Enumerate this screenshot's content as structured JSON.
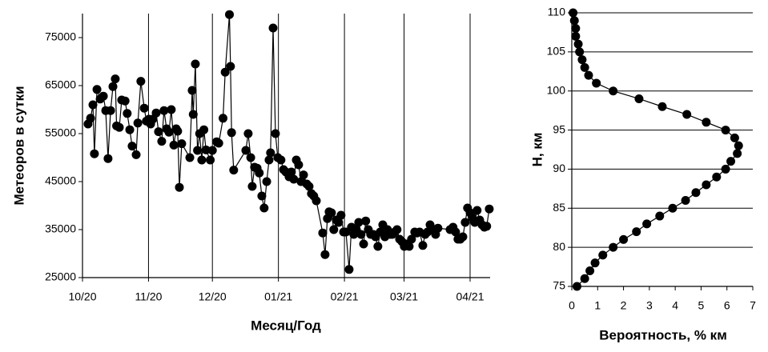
{
  "chart_data": [
    {
      "type": "line",
      "y_label": "Метеоров в сутки",
      "x_label": "Месяц/Год",
      "x": [
        2.6,
        3.8,
        4.9,
        5.6,
        6.8,
        8.3,
        9.8,
        10.9,
        12,
        13.2,
        14.3,
        15.4,
        16,
        17.3,
        18.4,
        20,
        21,
        22.2,
        23.3,
        25.2,
        26,
        27.4,
        29,
        30,
        31.2,
        32,
        33,
        34.6,
        35.7,
        37.2,
        38.3,
        39.5,
        40.6,
        41.7,
        42.9,
        44,
        44.7,
        45.5,
        46.6,
        50.4,
        51.5,
        52,
        53,
        54,
        55,
        56,
        57,
        58,
        60,
        61,
        63,
        64,
        66,
        67,
        69,
        69.5,
        70,
        71,
        76.7,
        77.8,
        79,
        79.7,
        80.8,
        82,
        83,
        84.2,
        85.3,
        86.5,
        87.6,
        88.3,
        89.5,
        90.6,
        91.7,
        93.2,
        94.4,
        95.5,
        97,
        98.1,
        99.2,
        100.4,
        101.5,
        102.6,
        103.8,
        105.3,
        106.4,
        107.5,
        108.6,
        109.8,
        112.8,
        113.9,
        115,
        115.8,
        116.9,
        118,
        119.2,
        120.3,
        121.4,
        122.6,
        123.7,
        125.2,
        126.3,
        127.4,
        128.6,
        129.7,
        130.8,
        132,
        133,
        134.2,
        135.3,
        136.5,
        137.6,
        138.7,
        139.8,
        141,
        142,
        143.2,
        144.4,
        145.5,
        146.6,
        147.7,
        148.9,
        150,
        151.1,
        152.3,
        153.4,
        154.5,
        156,
        157.1,
        158.3,
        159.8,
        160.9,
        162,
        163.2,
        164.3,
        165.8,
        166.9,
        172.6,
        174,
        175.2,
        176.3,
        177.4,
        178.6,
        179.7,
        180.8,
        182,
        183,
        184.2,
        185.3,
        186.5,
        187.6,
        188.7,
        189.8,
        191
      ],
      "series": [
        {
          "color": "#000000",
          "values": [
            57000,
            58200,
            61000,
            50800,
            64200,
            62200,
            62800,
            59800,
            49800,
            59800,
            64800,
            66400,
            56600,
            56300,
            62000,
            61800,
            59200,
            55800,
            52400,
            50600,
            57200,
            65900,
            60300,
            57600,
            58000,
            57000,
            58000,
            59300,
            55400,
            53400,
            59800,
            56000,
            55300,
            60000,
            52600,
            56000,
            55500,
            43800,
            52900,
            50000,
            64000,
            59000,
            69500,
            51500,
            55000,
            49500,
            55800,
            51600,
            49500,
            51500,
            53300,
            53000,
            58200,
            67800,
            79800,
            69000,
            55200,
            47400,
            51500,
            55000,
            50000,
            44000,
            48000,
            47800,
            46800,
            42000,
            39500,
            45000,
            49500,
            51000,
            77000,
            55000,
            50000,
            49500,
            47500,
            47000,
            46000,
            47000,
            45500,
            49500,
            48500,
            45000,
            46400,
            44500,
            44000,
            42500,
            42000,
            41000,
            34300,
            29800,
            37300,
            38700,
            38500,
            35000,
            37000,
            36500,
            38000,
            34500,
            34500,
            26700,
            35500,
            34000,
            35000,
            36500,
            34000,
            32000,
            36800,
            35000,
            34000,
            34000,
            33500,
            31500,
            34500,
            36000,
            33500,
            35000,
            34000,
            34000,
            34500,
            35000,
            33000,
            32500,
            31500,
            32000,
            31500,
            33000,
            34500,
            34300,
            34500,
            31700,
            34000,
            34500,
            36000,
            35000,
            34000,
            35300,
            35000,
            35500,
            34500,
            33000,
            33000,
            33500,
            36500,
            39500,
            38500,
            37500,
            36500,
            39000,
            37000,
            36000,
            35500,
            35700,
            39300
          ]
        }
      ],
      "xlim": [
        0,
        191.4
      ],
      "xticks": [
        {
          "value": 0,
          "label": "10/20"
        },
        {
          "value": 31,
          "label": "11/20"
        },
        {
          "value": 61,
          "label": "12/20"
        },
        {
          "value": 92,
          "label": "01/21"
        },
        {
          "value": 123,
          "label": "02/21"
        },
        {
          "value": 151,
          "label": "03/21"
        },
        {
          "value": 182,
          "label": "04/21"
        }
      ],
      "ylim": [
        25000,
        80000
      ],
      "yticks": [
        25000,
        35000,
        45000,
        55000,
        65000,
        75000
      ],
      "grid": "x"
    },
    {
      "type": "line",
      "y_label": "H, км",
      "x_label": "Вероятность, % км",
      "x": [
        0.2,
        0.5,
        0.7,
        0.9,
        1.2,
        1.6,
        2.0,
        2.5,
        2.9,
        3.4,
        3.9,
        4.4,
        4.8,
        5.2,
        5.6,
        5.95,
        6.15,
        6.4,
        6.45,
        6.3,
        5.95,
        5.2,
        4.45,
        3.5,
        2.6,
        1.6,
        0.95,
        0.65,
        0.5,
        0.4,
        0.3,
        0.25,
        0.15,
        0.15,
        0.1,
        0.05
      ],
      "series": [
        {
          "color": "#000000",
          "values": [
            75,
            76,
            77,
            78,
            79,
            80,
            81,
            82,
            83,
            84,
            85,
            86,
            87,
            88,
            89,
            90,
            91,
            92,
            93,
            94,
            95,
            96,
            97,
            98,
            99,
            100,
            101,
            102,
            103,
            104,
            105,
            106,
            107,
            108,
            109,
            110
          ]
        }
      ],
      "xlim": [
        0,
        7
      ],
      "xticks": [
        0,
        1,
        2,
        3,
        4,
        5,
        6,
        7
      ],
      "ylim": [
        75,
        110
      ],
      "yticks": [
        75,
        80,
        85,
        90,
        95,
        100,
        105,
        110
      ],
      "grid": "y"
    }
  ]
}
